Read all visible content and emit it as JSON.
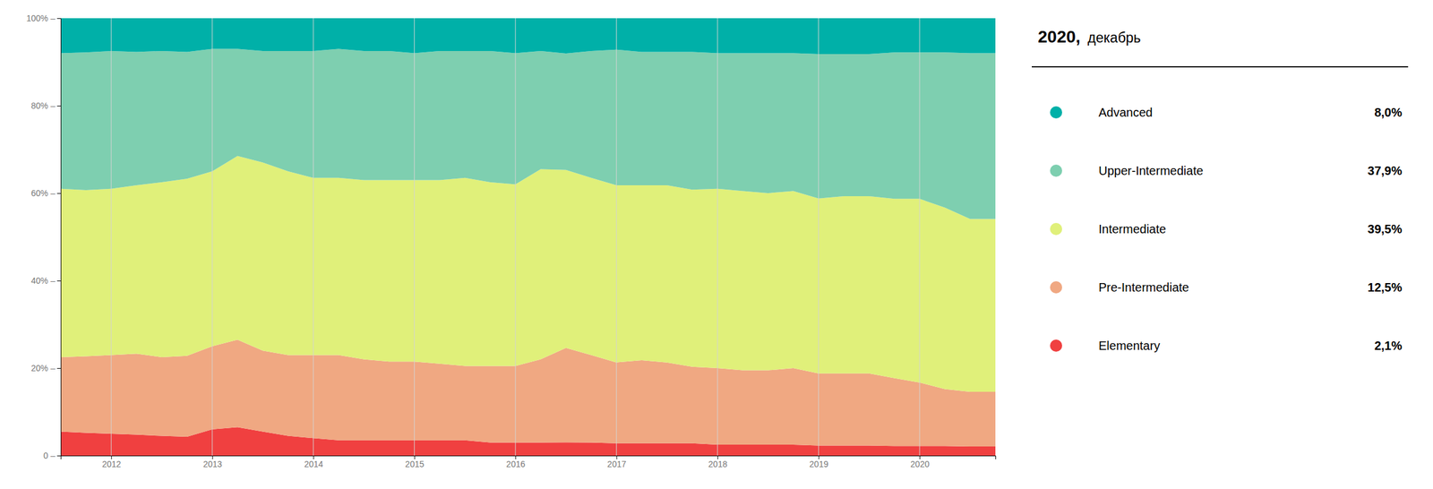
{
  "chart_data": {
    "type": "area",
    "stacked": true,
    "title": "2020,",
    "subtitle": "декабрь",
    "legend": "right",
    "grid": "x",
    "x": [
      2011.5,
      2011.75,
      2012.0,
      2012.25,
      2012.5,
      2012.75,
      2013.0,
      2013.25,
      2013.5,
      2013.75,
      2014.0,
      2014.25,
      2014.5,
      2014.75,
      2015.0,
      2015.25,
      2015.5,
      2015.75,
      2016.0,
      2016.25,
      2016.5,
      2016.75,
      2017.0,
      2017.25,
      2017.5,
      2017.75,
      2018.0,
      2018.25,
      2018.5,
      2018.75,
      2019.0,
      2019.25,
      2019.5,
      2019.75,
      2020.0,
      2020.25,
      2020.5,
      2020.75
    ],
    "xlim": [
      2011.5,
      2020.75
    ],
    "xticks": [
      2012,
      2013,
      2014,
      2015,
      2016,
      2017,
      2018,
      2019,
      2020
    ],
    "ylim": [
      0,
      100
    ],
    "yticks": [
      {
        "value": 0,
        "label": "0 –"
      },
      {
        "value": 20,
        "label": "20% –"
      },
      {
        "value": 40,
        "label": "40% –"
      },
      {
        "value": 60,
        "label": "60% –"
      },
      {
        "value": 80,
        "label": "80% –"
      },
      {
        "value": 100,
        "label": "100% –"
      }
    ],
    "series": [
      {
        "name": "Advanced",
        "color": "#00B0A8",
        "last_label": "8,0%",
        "values": [
          8.0,
          7.8,
          7.5,
          7.7,
          7.5,
          7.7,
          7.0,
          7.0,
          7.5,
          7.5,
          7.5,
          7.0,
          7.5,
          7.5,
          8.0,
          7.5,
          7.5,
          7.5,
          8.0,
          7.5,
          8.040201,
          7.5,
          7.2,
          7.7,
          7.7,
          7.7,
          8.0,
          8.0,
          8.0,
          8.0,
          8.2,
          8.2,
          8.2,
          7.8,
          7.8,
          7.8,
          8.0,
          8.0
        ]
      },
      {
        "name": "Upper-Intermediate",
        "color": "#7ECFB0",
        "last_label": "37,9%",
        "values": [
          31.0,
          31.5,
          31.5,
          30.5,
          30.0,
          29.0,
          28.0,
          24.5,
          25.5,
          27.5,
          29.0,
          29.5,
          29.5,
          29.5,
          29.0,
          29.5,
          29.0,
          30.0,
          30.0,
          27.0,
          26.633166,
          29.0,
          31.0,
          30.5,
          30.5,
          31.5,
          31.0,
          31.5,
          32.0,
          31.5,
          33.0,
          32.5,
          32.5,
          33.5,
          33.5,
          35.5,
          37.9,
          37.9
        ]
      },
      {
        "name": "Intermediate",
        "color": "#E0F07A",
        "last_label": "39,5%",
        "values": [
          38.5,
          38.0,
          38.0,
          38.5,
          40.0,
          40.5,
          40.0,
          42.0,
          43.0,
          42.0,
          40.5,
          40.5,
          41.0,
          41.5,
          41.5,
          42.0,
          43.0,
          42.0,
          41.5,
          43.5,
          40.703518,
          40.5,
          40.5,
          40.0,
          40.5,
          40.5,
          41.0,
          41.0,
          40.5,
          40.5,
          40.0,
          40.5,
          40.5,
          41.0,
          42.0,
          41.5,
          39.5,
          39.5
        ]
      },
      {
        "name": "Pre-Intermediate",
        "color": "#F0A882",
        "last_label": "12,5%",
        "values": [
          17.0,
          17.5,
          18.0,
          18.5,
          18.0,
          18.5,
          19.0,
          20.0,
          18.5,
          18.5,
          19.0,
          19.5,
          18.5,
          18.0,
          18.0,
          17.5,
          17.0,
          17.5,
          17.5,
          19.0,
          21.60804,
          20.0,
          18.5,
          19.0,
          18.5,
          17.5,
          17.5,
          17.0,
          17.0,
          17.5,
          16.5,
          16.5,
          16.5,
          15.5,
          14.5,
          13.0,
          12.5,
          12.5
        ]
      },
      {
        "name": "Elementary",
        "color": "#F04040",
        "last_label": "2,1%",
        "values": [
          5.5,
          5.2,
          5.0,
          4.8,
          4.5,
          4.3,
          6.0,
          6.5,
          5.5,
          4.5,
          4.0,
          3.5,
          3.5,
          3.5,
          3.5,
          3.5,
          3.5,
          3.0,
          3.0,
          3.0,
          3.015075,
          3.0,
          2.8,
          2.8,
          2.8,
          2.8,
          2.5,
          2.5,
          2.5,
          2.5,
          2.3,
          2.3,
          2.3,
          2.2,
          2.2,
          2.2,
          2.1,
          2.1
        ]
      }
    ]
  }
}
